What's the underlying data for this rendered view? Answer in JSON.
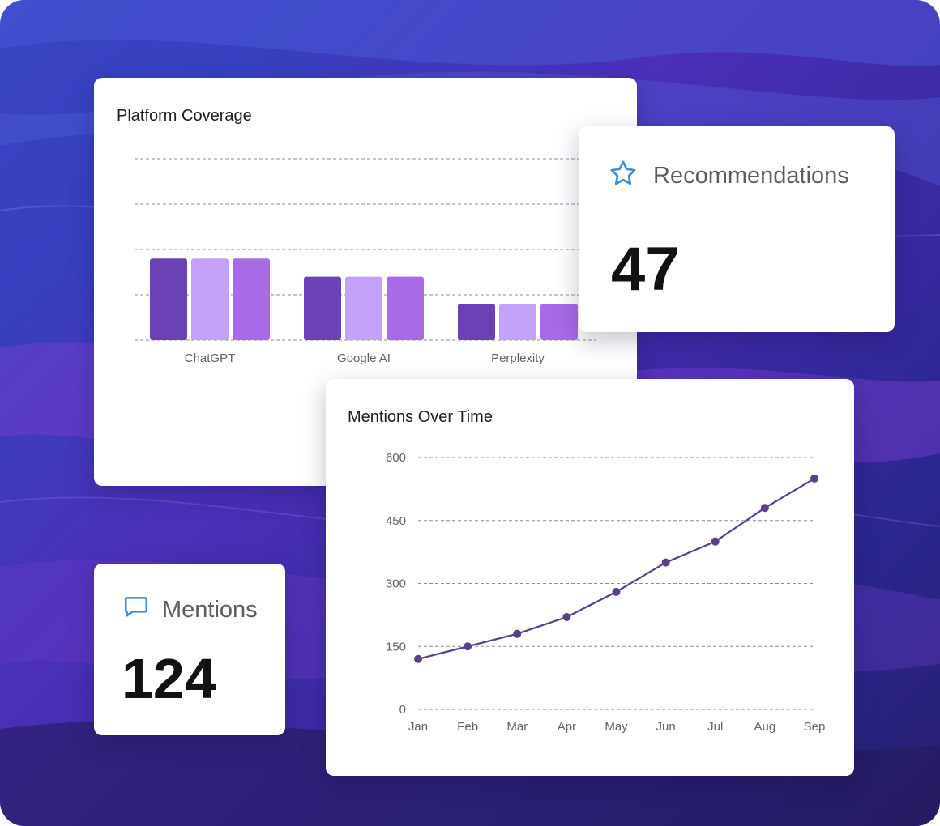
{
  "coverage_card": {
    "title": "Platform Coverage"
  },
  "recommendations_card": {
    "label": "Recommendations",
    "value": "47",
    "icon": "star-icon",
    "icon_color": "#3d8fd1"
  },
  "mentions_card": {
    "label": "Mentions",
    "value": "124",
    "icon": "chat-bubble-icon",
    "icon_color": "#3d8fd1"
  },
  "trend_card": {
    "title": "Mentions Over Time"
  },
  "colors": {
    "bar_dark": "#6a42b6",
    "bar_light": "#c4a1f9",
    "bar_mid": "#a96ae8",
    "line": "#5a3f8a"
  },
  "chart_data": [
    {
      "type": "bar",
      "title": "Platform Coverage",
      "categories": [
        "ChatGPT",
        "Google AI",
        "Perplexity"
      ],
      "ylim": [
        0,
        100
      ],
      "grid": true,
      "series": [
        {
          "values": [
            45,
            35,
            20
          ]
        },
        {
          "values": [
            45,
            35,
            20
          ]
        },
        {
          "values": [
            45,
            35,
            20
          ]
        }
      ]
    },
    {
      "type": "line",
      "title": "Mentions Over Time",
      "x": [
        "Jan",
        "Feb",
        "Mar",
        "Apr",
        "May",
        "Jun",
        "Jul",
        "Aug",
        "Sep"
      ],
      "y": [
        120,
        150,
        180,
        220,
        280,
        350,
        400,
        480,
        550
      ],
      "ylim": [
        0,
        600
      ],
      "yticks": [
        0,
        150,
        300,
        450,
        600
      ],
      "grid": true
    }
  ]
}
